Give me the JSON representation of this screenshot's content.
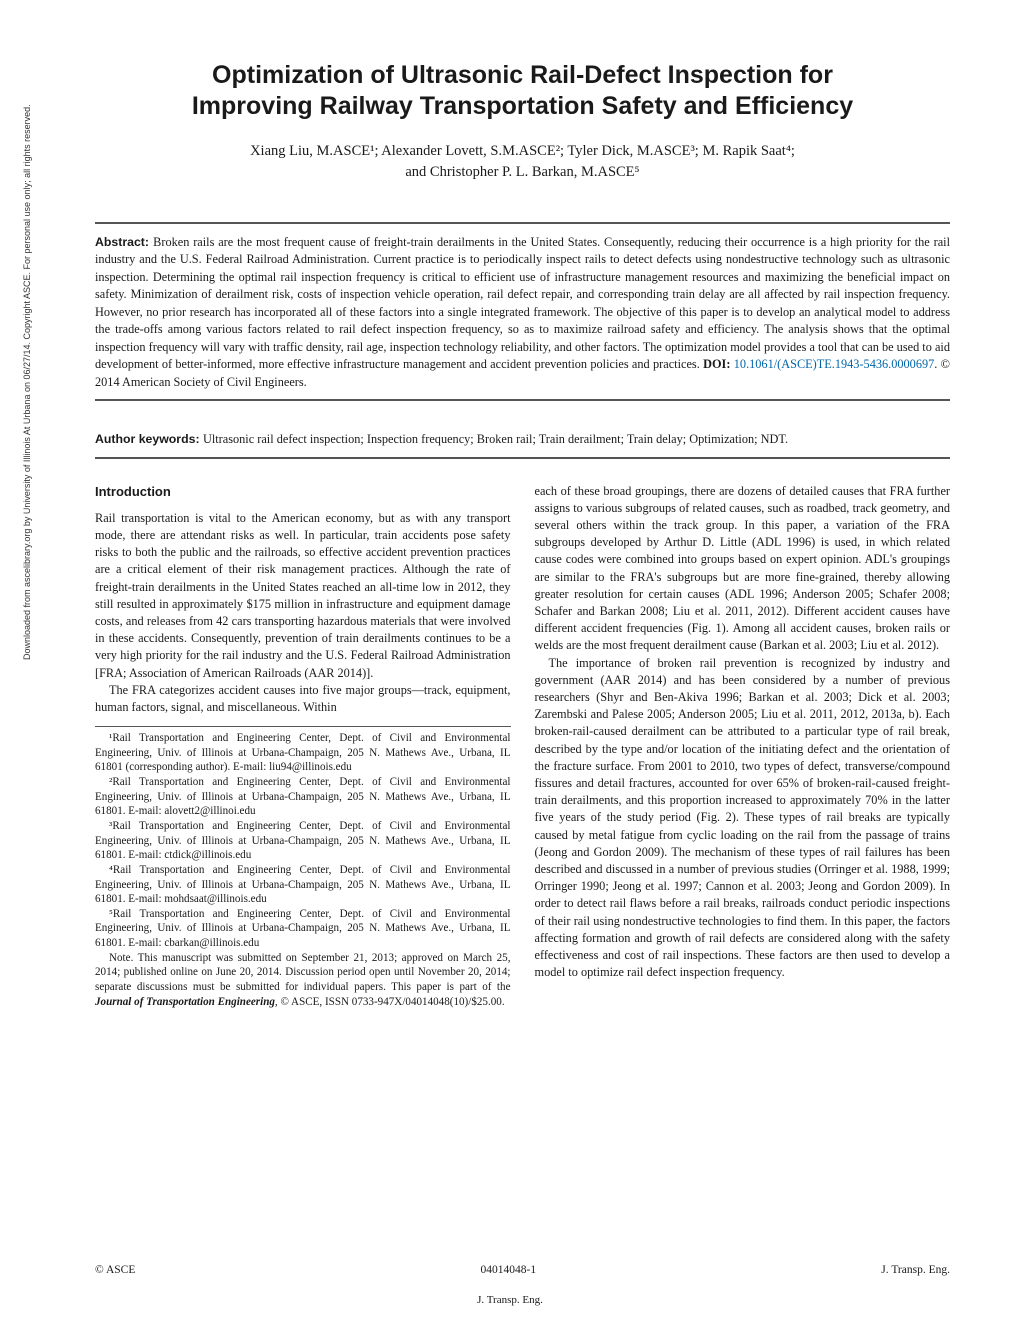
{
  "sidebar": "Downloaded from ascelibrary.org by University of Illinois At Urbana on 06/27/14. Copyright ASCE. For personal use only; all rights reserved.",
  "title_line1": "Optimization of Ultrasonic Rail-Defect Inspection for",
  "title_line2": "Improving Railway Transportation Safety and Efficiency",
  "authors_line1": "Xiang Liu, M.ASCE¹; Alexander Lovett, S.M.ASCE²; Tyler Dick, M.ASCE³; M. Rapik Saat⁴;",
  "authors_line2": "and Christopher P. L. Barkan, M.ASCE⁵",
  "abstract_label": "Abstract: ",
  "abstract_text": "Broken rails are the most frequent cause of freight-train derailments in the United States. Consequently, reducing their occurrence is a high priority for the rail industry and the U.S. Federal Railroad Administration. Current practice is to periodically inspect rails to detect defects using nondestructive technology such as ultrasonic inspection. Determining the optimal rail inspection frequency is critical to efficient use of infrastructure management resources and maximizing the beneficial impact on safety. Minimization of derailment risk, costs of inspection vehicle operation, rail defect repair, and corresponding train delay are all affected by rail inspection frequency. However, no prior research has incorporated all of these factors into a single integrated framework. The objective of this paper is to develop an analytical model to address the trade-offs among various factors related to rail defect inspection frequency, so as to maximize railroad safety and efficiency. The analysis shows that the optimal inspection frequency will vary with traffic density, rail age, inspection technology reliability, and other factors. The optimization model provides a tool that can be used to aid development of better-informed, more effective infrastructure management and accident prevention policies and practices. ",
  "doi_label": "DOI: ",
  "doi_link": "10.1061/(ASCE)TE.1943-5436.0000697",
  "doi_tail": ". © 2014 American Society of Civil Engineers.",
  "keywords_label": "Author keywords: ",
  "keywords_text": "Ultrasonic rail defect inspection; Inspection frequency; Broken rail; Train derailment; Train delay; Optimization; NDT.",
  "intro_heading": "Introduction",
  "intro_p1": "Rail transportation is vital to the American economy, but as with any transport mode, there are attendant risks as well. In particular, train accidents pose safety risks to both the public and the railroads, so effective accident prevention practices are a critical element of their risk management practices. Although the rate of freight-train derailments in the United States reached an all-time low in 2012, they still resulted in approximately $175 million in infrastructure and equipment damage costs, and releases from 42 cars transporting hazardous materials that were involved in these accidents. Consequently, prevention of train derailments continues to be a very high priority for the rail industry and the U.S. Federal Railroad Administration [FRA; Association of American Railroads (AAR 2014)].",
  "intro_p2": "The FRA categorizes accident causes into five major groups—track, equipment, human factors, signal, and miscellaneous. Within",
  "col2_p1": "each of these broad groupings, there are dozens of detailed causes that FRA further assigns to various subgroups of related causes, such as roadbed, track geometry, and several others within the track group. In this paper, a variation of the FRA subgroups developed by Arthur D. Little (ADL 1996) is used, in which related cause codes were combined into groups based on expert opinion. ADL's groupings are similar to the FRA's subgroups but are more fine-grained, thereby allowing greater resolution for certain causes (ADL 1996; Anderson 2005; Schafer 2008; Schafer and Barkan 2008; Liu et al. 2011, 2012). Different accident causes have different accident frequencies (Fig. 1). Among all accident causes, broken rails or welds are the most frequent derailment cause (Barkan et al. 2003; Liu et al. 2012).",
  "col2_p2": "The importance of broken rail prevention is recognized by industry and government (AAR 2014) and has been considered by a number of previous researchers (Shyr and Ben-Akiva 1996; Barkan et al. 2003; Dick et al. 2003; Zarembski and Palese 2005; Anderson 2005; Liu et al. 2011, 2012, 2013a, b). Each broken-rail-caused derailment can be attributed to a particular type of rail break, described by the type and/or location of the initiating defect and the orientation of the fracture surface. From 2001 to 2010, two types of defect, transverse/compound fissures and detail fractures, accounted for over 65% of broken-rail-caused freight-train derailments, and this proportion increased to approximately 70% in the latter five years of the study period (Fig. 2). These types of rail breaks are typically caused by metal fatigue from cyclic loading on the rail from the passage of trains (Jeong and Gordon 2009). The mechanism of these types of rail failures has been described and discussed in a number of previous studies (Orringer et al. 1988, 1999; Orringer 1990; Jeong et al. 1997; Cannon et al. 2003; Jeong and Gordon 2009). In order to detect rail flaws before a rail breaks, railroads conduct periodic inspections of their rail using nondestructive technologies to find them. In this paper, the factors affecting formation and growth of rail defects are considered along with the safety effectiveness and cost of rail inspections. These factors are then used to develop a model to optimize rail defect inspection frequency.",
  "fn1": "¹Rail Transportation and Engineering Center, Dept. of Civil and Environmental Engineering, Univ. of Illinois at Urbana-Champaign, 205 N. Mathews Ave., Urbana, IL 61801 (corresponding author). E-mail: liu94@illinois.edu",
  "fn2": "²Rail Transportation and Engineering Center, Dept. of Civil and Environmental Engineering, Univ. of Illinois at Urbana-Champaign, 205 N. Mathews Ave., Urbana, IL 61801. E-mail: alovett2@illinoi.edu",
  "fn3": "³Rail Transportation and Engineering Center, Dept. of Civil and Environmental Engineering, Univ. of Illinois at Urbana-Champaign, 205 N. Mathews Ave., Urbana, IL 61801. E-mail: ctdick@illinois.edu",
  "fn4": "⁴Rail Transportation and Engineering Center, Dept. of Civil and Environmental Engineering, Univ. of Illinois at Urbana-Champaign, 205 N. Mathews Ave., Urbana, IL 61801. E-mail: mohdsaat@illinois.edu",
  "fn5": "⁵Rail Transportation and Engineering Center, Dept. of Civil and Environmental Engineering, Univ. of Illinois at Urbana-Champaign, 205 N. Mathews Ave., Urbana, IL 61801. E-mail: cbarkan@illinois.edu",
  "note_pre": "Note. This manuscript was submitted on September 21, 2013; approved on March 25, 2014; published online on June 20, 2014. Discussion period open until November 20, 2014; separate discussions must be submitted for individual papers. This paper is part of the ",
  "note_journal": "Journal of Transportation Engineering",
  "note_tail": ", © ASCE, ISSN 0733-947X/04014048(10)/$25.00.",
  "footer_left": "© ASCE",
  "footer_center": "04014048-1",
  "footer_right": "J. Transp. Eng.",
  "footer_journal": "J. Transp. Eng."
}
